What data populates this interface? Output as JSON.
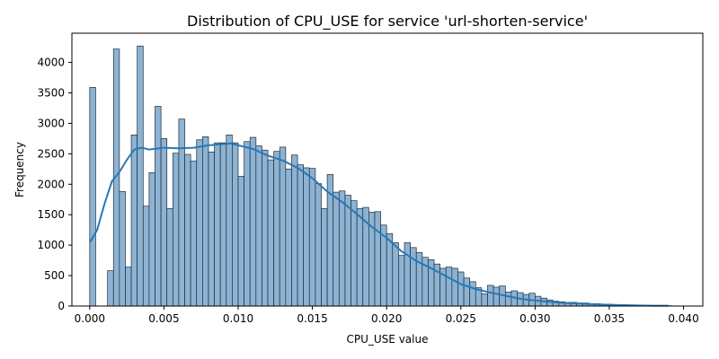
{
  "chart_data": {
    "type": "bar",
    "title": "Distribution of CPU_USE for service 'url-shorten-service'",
    "xlabel": "CPU_USE value",
    "ylabel": "Frequency",
    "xlim": [
      -0.0012,
      0.0413
    ],
    "ylim": [
      0,
      4480
    ],
    "x_ticks": [
      0.0,
      0.005,
      0.01,
      0.015,
      0.02,
      0.025,
      0.03,
      0.035,
      0.04
    ],
    "x_tick_labels": [
      "0.000",
      "0.005",
      "0.010",
      "0.015",
      "0.020",
      "0.025",
      "0.030",
      "0.035",
      "0.040"
    ],
    "y_ticks": [
      0,
      500,
      1000,
      1500,
      2000,
      2500,
      3000,
      3500,
      4000
    ],
    "y_tick_labels": [
      "0",
      "500",
      "1000",
      "1500",
      "2000",
      "2500",
      "3000",
      "3500",
      "4000"
    ],
    "bin_start": 0.0,
    "bin_width": 0.0004,
    "counts": [
      3590,
      0,
      0,
      580,
      4220,
      1880,
      640,
      2810,
      4270,
      1640,
      2190,
      3280,
      2750,
      1600,
      2510,
      3070,
      2490,
      2380,
      2730,
      2780,
      2530,
      2680,
      2680,
      2810,
      2680,
      2130,
      2700,
      2770,
      2630,
      2560,
      2400,
      2540,
      2610,
      2250,
      2480,
      2320,
      2270,
      2260,
      2010,
      1600,
      2160,
      1870,
      1890,
      1820,
      1730,
      1600,
      1620,
      1540,
      1550,
      1330,
      1190,
      1040,
      830,
      1040,
      960,
      880,
      800,
      760,
      690,
      620,
      640,
      620,
      560,
      460,
      400,
      300,
      200,
      340,
      310,
      330,
      230,
      250,
      220,
      190,
      210,
      160,
      130,
      100,
      80,
      70,
      60,
      60,
      50,
      50,
      40,
      40,
      30,
      30,
      20,
      20,
      10,
      10,
      10,
      10,
      10,
      10,
      5,
      5,
      3
    ],
    "kde": {
      "x": [
        0.0,
        0.0005,
        0.001,
        0.0015,
        0.002,
        0.0025,
        0.003,
        0.0035,
        0.004,
        0.005,
        0.006,
        0.007,
        0.008,
        0.009,
        0.0095,
        0.01,
        0.011,
        0.012,
        0.013,
        0.014,
        0.015,
        0.016,
        0.017,
        0.018,
        0.019,
        0.02,
        0.021,
        0.022,
        0.023,
        0.024,
        0.025,
        0.026,
        0.027,
        0.028,
        0.029,
        0.03,
        0.031,
        0.032,
        0.033,
        0.034,
        0.035,
        0.036,
        0.037,
        0.038,
        0.039
      ],
      "y": [
        1040,
        1250,
        1680,
        2050,
        2200,
        2400,
        2570,
        2600,
        2570,
        2600,
        2590,
        2600,
        2640,
        2660,
        2670,
        2640,
        2580,
        2470,
        2390,
        2270,
        2100,
        1880,
        1710,
        1510,
        1300,
        1120,
        900,
        740,
        620,
        490,
        360,
        280,
        220,
        170,
        120,
        90,
        70,
        50,
        40,
        30,
        20,
        15,
        10,
        5,
        5
      ]
    },
    "colors": {
      "bar_fill": "#8db3d4",
      "bar_edge": "#1f2b36",
      "kde_line": "#2878b5"
    }
  }
}
